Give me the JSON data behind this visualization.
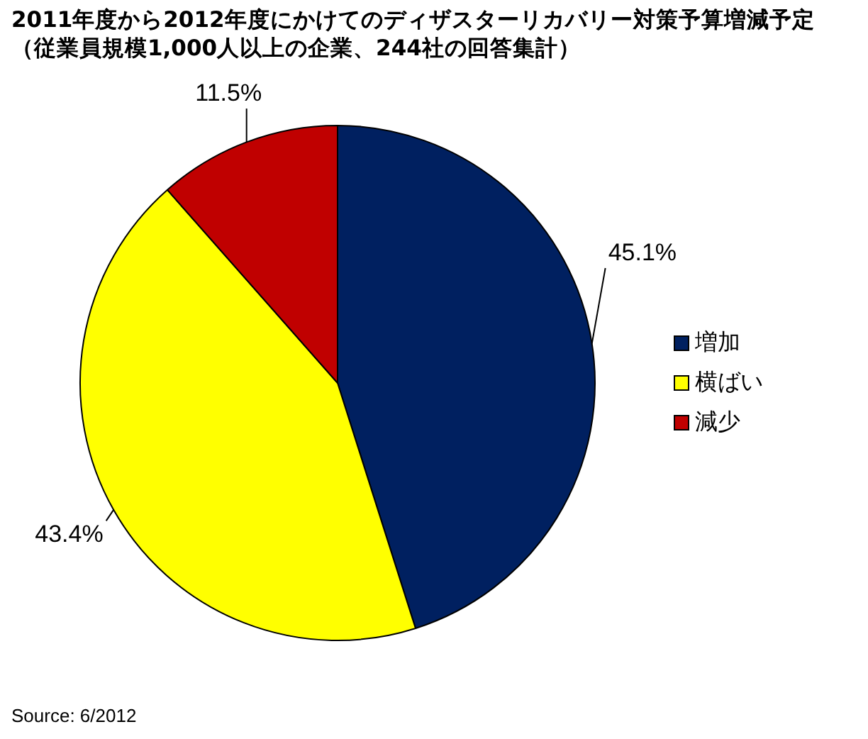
{
  "chart_data": {
    "type": "pie",
    "title": "2011年度から2012年度にかけてのディザスターリカバリー対策予算増減予定",
    "subtitle": "（従業員規模1,000人以上の企業、244社の回答集計）",
    "categories": [
      "増加",
      "横ばい",
      "減少"
    ],
    "values": [
      45.1,
      43.4,
      11.5
    ],
    "value_labels": [
      "45.1%",
      "43.4%",
      "11.5%"
    ],
    "colors": [
      "#002060",
      "#ffff00",
      "#c00000"
    ],
    "legend": "right",
    "annotations": [
      "Source: 6/2012"
    ]
  }
}
